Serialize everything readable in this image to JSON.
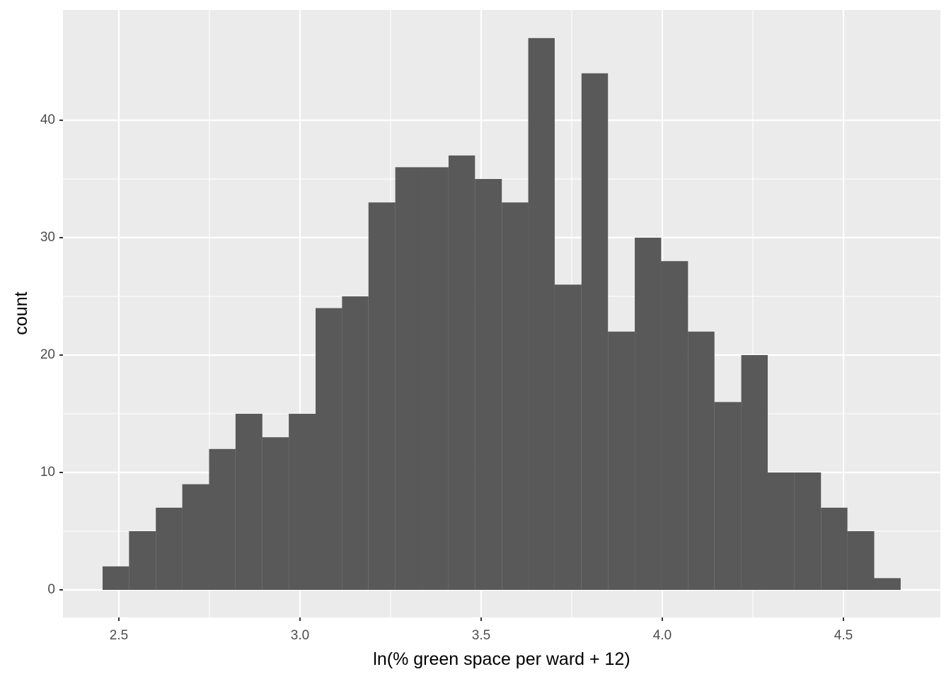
{
  "chart_data": {
    "type": "histogram",
    "x_label": "ln(% green space per ward + 12)",
    "y_label": "count",
    "bins": [
      2.455,
      2.528,
      2.602,
      2.675,
      2.749,
      2.822,
      2.896,
      2.969,
      3.043,
      3.116,
      3.189,
      3.263,
      3.336,
      3.41,
      3.483,
      3.557,
      3.63,
      3.703,
      3.777,
      3.85,
      3.924,
      3.997,
      4.071,
      4.144,
      4.218,
      4.291,
      4.364,
      4.438,
      4.511,
      4.585,
      4.658
    ],
    "values": [
      2,
      5,
      7,
      9,
      12,
      15,
      13,
      15,
      24,
      25,
      33,
      36,
      36,
      37,
      35,
      33,
      47,
      26,
      44,
      22,
      30,
      28,
      22,
      16,
      20,
      10,
      10,
      7,
      5,
      1
    ],
    "color": "#595959",
    "xlim": [
      2.3457,
      4.7676
    ],
    "ylim": [
      -2.35,
      49.4
    ],
    "xticks": [
      2.5,
      {
        "value": 3.0,
        "label": "3.0"
      },
      3.5,
      {
        "value": 4.0,
        "label": "4.0"
      },
      4.5
    ],
    "yticks": [
      0,
      10,
      20,
      30,
      40
    ],
    "grid": true
  }
}
